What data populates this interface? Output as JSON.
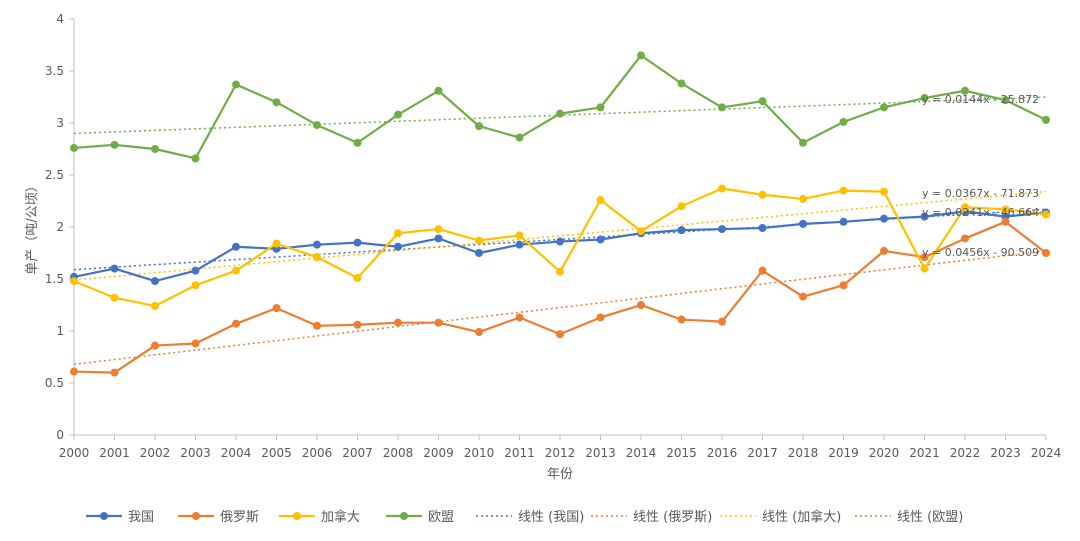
{
  "chart_data": {
    "type": "line",
    "xlabel": "年份",
    "ylabel": "单产（吨/公顷）",
    "ylim": [
      0,
      4
    ],
    "yticks": [
      "0",
      "0.5",
      "1",
      "1.5",
      "2",
      "2.5",
      "3",
      "3.5",
      "4"
    ],
    "grid": "none",
    "legend_position": "bottom",
    "x": [
      "2000",
      "2001",
      "2002",
      "2003",
      "2004",
      "2005",
      "2006",
      "2007",
      "2008",
      "2009",
      "2010",
      "2011",
      "2012",
      "2013",
      "2014",
      "2015",
      "2016",
      "2017",
      "2018",
      "2019",
      "2020",
      "2021",
      "2022",
      "2023",
      "2024"
    ],
    "series": [
      {
        "name": "我国",
        "color": "#4472C4",
        "values": [
          1.52,
          1.6,
          1.48,
          1.58,
          1.81,
          1.79,
          1.83,
          1.85,
          1.81,
          1.89,
          1.75,
          1.83,
          1.86,
          1.88,
          1.94,
          1.97,
          1.98,
          1.99,
          2.03,
          2.05,
          2.08,
          2.1,
          2.15,
          2.1,
          2.14
        ]
      },
      {
        "name": "俄罗斯",
        "color": "#ED7D31",
        "values": [
          0.61,
          0.6,
          0.86,
          0.88,
          1.07,
          1.22,
          1.05,
          1.06,
          1.08,
          1.08,
          0.99,
          1.13,
          0.97,
          1.13,
          1.25,
          1.11,
          1.09,
          1.58,
          1.33,
          1.44,
          1.77,
          1.71,
          1.89,
          2.05,
          1.75
        ]
      },
      {
        "name": "加拿大",
        "color": "#FFC000",
        "values": [
          1.48,
          1.32,
          1.24,
          1.44,
          1.58,
          1.84,
          1.71,
          1.51,
          1.94,
          1.98,
          1.87,
          1.92,
          1.57,
          2.26,
          1.96,
          2.2,
          2.37,
          2.31,
          2.27,
          2.35,
          2.34,
          1.6,
          2.19,
          2.17,
          2.12
        ]
      },
      {
        "name": "欧盟",
        "color": "#70AD47",
        "values": [
          2.76,
          2.79,
          2.75,
          2.66,
          3.37,
          3.2,
          2.98,
          2.81,
          3.08,
          3.31,
          2.97,
          2.86,
          3.09,
          3.15,
          3.65,
          3.38,
          3.15,
          3.21,
          2.81,
          3.01,
          3.15,
          3.24,
          3.31,
          3.22,
          3.03
        ]
      }
    ],
    "trendlines": [
      {
        "name": "线性 (我国)",
        "color": "#4472C4",
        "start": 1.59,
        "end": 2.17,
        "equation": "y = 0.0241x - 46.664"
      },
      {
        "name": "线性 (俄罗斯)",
        "color": "#ED7D31",
        "start": 0.68,
        "end": 1.77,
        "equation": "y = 0.0456x - 90.509"
      },
      {
        "name": "线性 (加拿大)",
        "color": "#FFC000",
        "start": 1.49,
        "end": 2.34,
        "equation": "y = 0.0367x - 71.873"
      },
      {
        "name": "线性 (欧盟)",
        "color": "#70AD47",
        "start": 2.9,
        "end": 3.25,
        "equation": "y = 0.0144x - 25.872"
      }
    ]
  }
}
